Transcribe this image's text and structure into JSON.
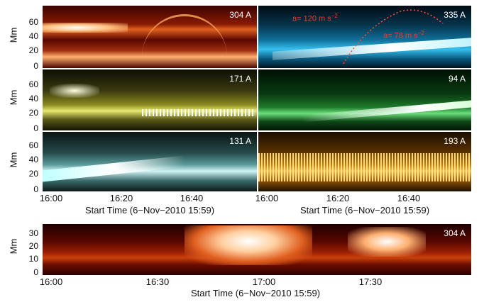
{
  "figure": {
    "top_panels": [
      {
        "id": "p304",
        "label": "304 A",
        "colors": [
          "#2a0000",
          "#7a0d00",
          "#c83a10",
          "#ffd9a8"
        ]
      },
      {
        "id": "p335",
        "label": "335 A",
        "colors": [
          "#021018",
          "#0a4a6a",
          "#1a9fd0",
          "#e8fbff"
        ]
      },
      {
        "id": "p171",
        "label": "171 A",
        "colors": [
          "#101005",
          "#4a4a10",
          "#a8a830",
          "#ffffd8"
        ]
      },
      {
        "id": "p94",
        "label": "94 A",
        "colors": [
          "#011204",
          "#0c4a14",
          "#2fa040",
          "#f2fff2"
        ]
      },
      {
        "id": "p131",
        "label": "131 A",
        "colors": [
          "#0a1616",
          "#2a5a5a",
          "#7ab8b8",
          "#f4ffff"
        ]
      },
      {
        "id": "p193",
        "label": "193 A",
        "colors": [
          "#1a0e00",
          "#6a4000",
          "#d08a10",
          "#fff0b8"
        ]
      }
    ],
    "top_y_label": "Mm",
    "top_y_ticks": [
      "60",
      "40",
      "20",
      "0"
    ],
    "top_x_ticks": [
      "16:00",
      "16:20",
      "16:40"
    ],
    "top_x_ticks_right": [
      "16:00",
      "16:20",
      "16:40"
    ],
    "top_x_title": "Start Time (6−Nov−2010 15:59)",
    "annotations": [
      {
        "text": "a= 120 m s",
        "sup": "−2"
      },
      {
        "text": "a= 78 m s",
        "sup": "−2"
      }
    ],
    "bottom_panel": {
      "label": "304 A",
      "colors": [
        "#200000",
        "#6a0a00",
        "#c03008",
        "#ffd8a0"
      ]
    },
    "bottom_y_label": "Mm",
    "bottom_y_ticks": [
      "30",
      "20",
      "10",
      "0"
    ],
    "bottom_x_ticks": [
      "16:00",
      "16:30",
      "17:00",
      "17:30"
    ],
    "bottom_x_title": "Start Time (6−Nov−2010 15:59)"
  }
}
